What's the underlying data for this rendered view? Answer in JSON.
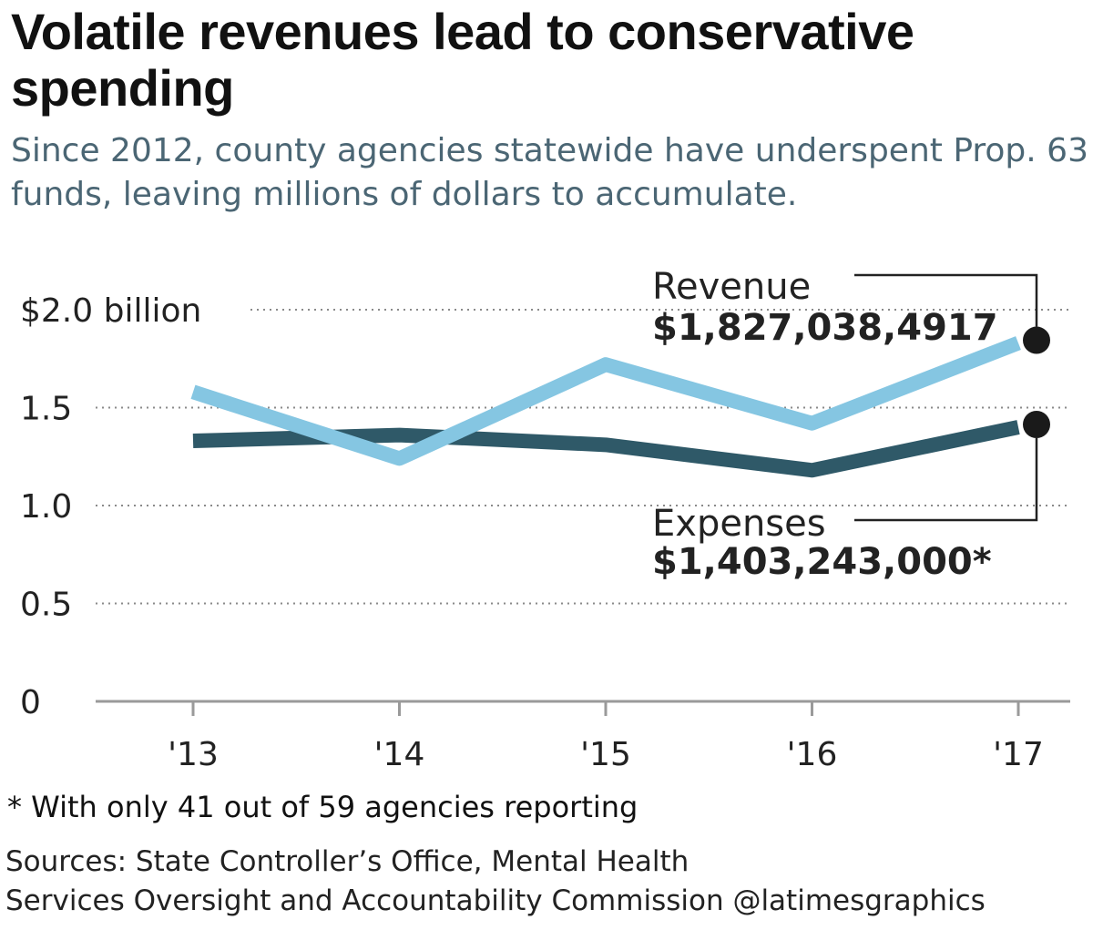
{
  "header": {
    "title": "Volatile revenues lead to conservative spending",
    "subtitle": "Since 2012, county agencies statewide have underspent Prop. 63 funds, leaving millions of dollars to accumulate."
  },
  "chart_data": {
    "type": "line",
    "categories": [
      "'13",
      "'14",
      "'15",
      "'16",
      "'17"
    ],
    "ylim": [
      0,
      2.0
    ],
    "yticks": [
      {
        "value": 2.0,
        "label": "$2.0 billion"
      },
      {
        "value": 1.5,
        "label": "1.5"
      },
      {
        "value": 1.0,
        "label": "1.0"
      },
      {
        "value": 0.5,
        "label": "0.5"
      },
      {
        "value": 0,
        "label": "0"
      }
    ],
    "grid": "dotted horizontal",
    "series": [
      {
        "name": "Revenue",
        "color": "#85c6e2",
        "values": [
          1.58,
          1.24,
          1.72,
          1.42,
          1.83
        ],
        "callout_value": "$1,827,038,4917"
      },
      {
        "name": "Expenses",
        "color": "#2f5968",
        "values": [
          1.33,
          1.36,
          1.31,
          1.18,
          1.4
        ],
        "callout_value": "$1,403,243,000*"
      }
    ]
  },
  "footer": {
    "footnote": "* With only 41 out of 59 agencies reporting",
    "source_line1": "Sources: State Controller’s Office, Mental Health",
    "source_line2": "Services Oversight and Accountability Commission @latimesgraphics"
  }
}
